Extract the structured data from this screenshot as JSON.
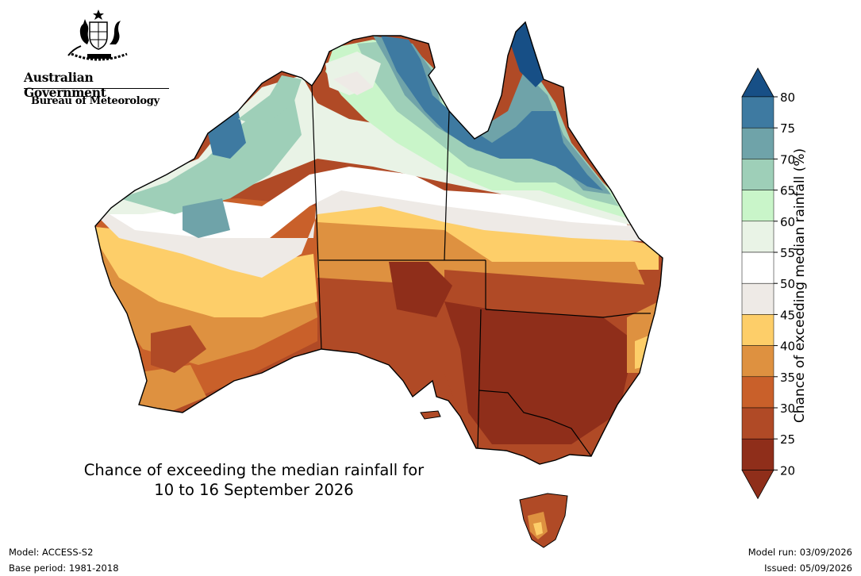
{
  "header": {
    "government": "Australian Government",
    "bureau": "Bureau of Meteorology"
  },
  "map": {
    "title_line1": "Chance of exceeding the median rainfall for",
    "title_line2": "10 to 16 September 2026",
    "region": "Australia"
  },
  "colorbar": {
    "label": "Chance of exceeding median rainfall (%)",
    "ticks": [
      "80",
      "75",
      "70",
      "65",
      "60",
      "55",
      "50",
      "45",
      "40",
      "35",
      "30",
      "25",
      "20"
    ],
    "colors": [
      "#174f86",
      "#3e7aa1",
      "#6fa3a9",
      "#9ecfb8",
      "#c9f5c9",
      "#e9f3e6",
      "#ffffff",
      "#eeeae6",
      "#fdce69",
      "#de9140",
      "#c9602a",
      "#b04a26",
      "#8f2e1a"
    ]
  },
  "footer": {
    "model": "Model: ACCESS-S2",
    "base_period": "Base period: 1981-2018",
    "model_run": "Model run: 03/09/2026",
    "issued": "Issued: 05/09/2026"
  }
}
